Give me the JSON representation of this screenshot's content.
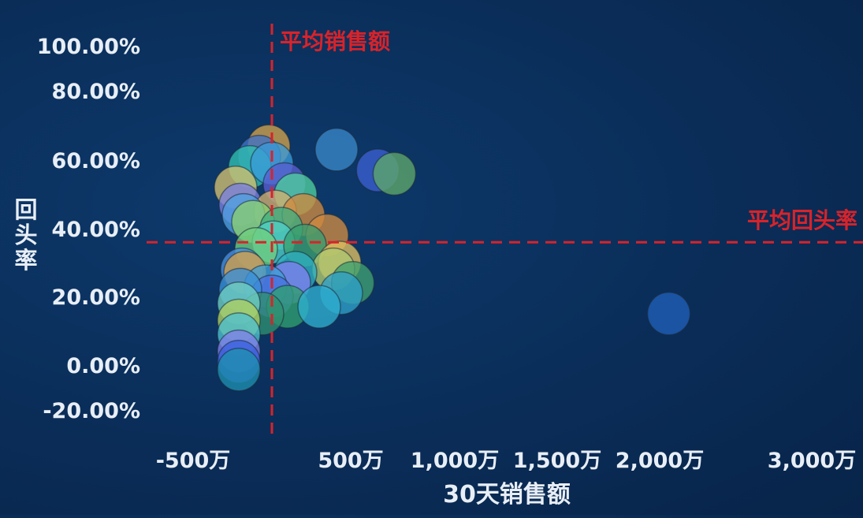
{
  "chart_data": {
    "type": "scatter",
    "title": "",
    "xlabel": "30天销售额",
    "ylabel": "回头率",
    "x_unit": "万",
    "y_unit": "%",
    "x_ticks": [
      {
        "value": -500,
        "label": "-500万"
      },
      {
        "value": 500,
        "label": "500万"
      },
      {
        "value": 1000,
        "label": "1,000万"
      },
      {
        "value": 1500,
        "label": "1,500万"
      },
      {
        "value": 2000,
        "label": "2,000万"
      },
      {
        "value": 3000,
        "label": "3,000万"
      }
    ],
    "y_ticks": [
      {
        "value": -20,
        "label": "-20.00%"
      },
      {
        "value": 0,
        "label": "0.00%"
      },
      {
        "value": 20,
        "label": "20.00%"
      },
      {
        "value": 40,
        "label": "40.00%"
      },
      {
        "value": 60,
        "label": "60.00%"
      },
      {
        "value": 80,
        "label": "80.00%"
      },
      {
        "value": 100,
        "label": "100.00%"
      }
    ],
    "avg_lines": {
      "x": {
        "value": 0,
        "label": "平均销售额",
        "color": "#d8232a"
      },
      "y": {
        "value": 36,
        "label": "平均回头率",
        "color": "#d8232a"
      }
    },
    "grid": false,
    "legend": "none",
    "colors": {
      "background": "#0a2d58",
      "axis_text": "#e8eef6",
      "avg_line": "#d8232a"
    },
    "points": [
      {
        "x": 2060,
        "y": 15,
        "color": "#1f5fb8"
      },
      {
        "x": 410,
        "y": 63,
        "color": "#3a86c8"
      },
      {
        "x": 630,
        "y": 57,
        "color": "#3b5fd1"
      },
      {
        "x": 710,
        "y": 56,
        "color": "#5fa86a"
      },
      {
        "x": -20,
        "y": 64,
        "color": "#d4a24a"
      },
      {
        "x": -80,
        "y": 61,
        "color": "#3f72c9"
      },
      {
        "x": -140,
        "y": 58,
        "color": "#2fc0b0"
      },
      {
        "x": 0,
        "y": 59,
        "color": "#3a9ad8"
      },
      {
        "x": 80,
        "y": 53,
        "color": "#5a5fd0"
      },
      {
        "x": -230,
        "y": 52,
        "color": "#d4c070"
      },
      {
        "x": 150,
        "y": 50,
        "color": "#4fcf9f"
      },
      {
        "x": -200,
        "y": 47,
        "color": "#7a80e0"
      },
      {
        "x": 20,
        "y": 45,
        "color": "#d4b070"
      },
      {
        "x": 200,
        "y": 44,
        "color": "#d08a40"
      },
      {
        "x": -180,
        "y": 44,
        "color": "#4f9fe0"
      },
      {
        "x": -120,
        "y": 42,
        "color": "#8acf70"
      },
      {
        "x": 60,
        "y": 40,
        "color": "#3fb080"
      },
      {
        "x": 350,
        "y": 38,
        "color": "#d08a40"
      },
      {
        "x": 10,
        "y": 36,
        "color": "#4fd0c8"
      },
      {
        "x": 210,
        "y": 35,
        "color": "#3a9f70"
      },
      {
        "x": -100,
        "y": 34,
        "color": "#6fcf7f"
      },
      {
        "x": 430,
        "y": 30,
        "color": "#e0c060"
      },
      {
        "x": 390,
        "y": 28,
        "color": "#b0c870"
      },
      {
        "x": -190,
        "y": 28,
        "color": "#4a8fe0"
      },
      {
        "x": -170,
        "y": 27,
        "color": "#d4a04a"
      },
      {
        "x": 150,
        "y": 27,
        "color": "#2fb0c0"
      },
      {
        "x": 510,
        "y": 24,
        "color": "#3fa070"
      },
      {
        "x": 110,
        "y": 24,
        "color": "#8080f0"
      },
      {
        "x": -40,
        "y": 23,
        "color": "#3f9fd8"
      },
      {
        "x": 0,
        "y": 20,
        "color": "#4a70e0"
      },
      {
        "x": 440,
        "y": 21,
        "color": "#2fa0c8"
      },
      {
        "x": -200,
        "y": 22,
        "color": "#3a8fd8"
      },
      {
        "x": 100,
        "y": 17,
        "color": "#2fa070"
      },
      {
        "x": 300,
        "y": 17,
        "color": "#2fb0d0"
      },
      {
        "x": -60,
        "y": 15,
        "color": "#2f9070"
      },
      {
        "x": -210,
        "y": 18,
        "color": "#6fd0c0"
      },
      {
        "x": -210,
        "y": 13,
        "color": "#b0d060"
      },
      {
        "x": -210,
        "y": 9,
        "color": "#4fc0d0"
      },
      {
        "x": -210,
        "y": 4,
        "color": "#8080e8"
      },
      {
        "x": -210,
        "y": 1,
        "color": "#3a60e0"
      },
      {
        "x": -210,
        "y": -2,
        "color": "#1f90b0"
      }
    ]
  }
}
